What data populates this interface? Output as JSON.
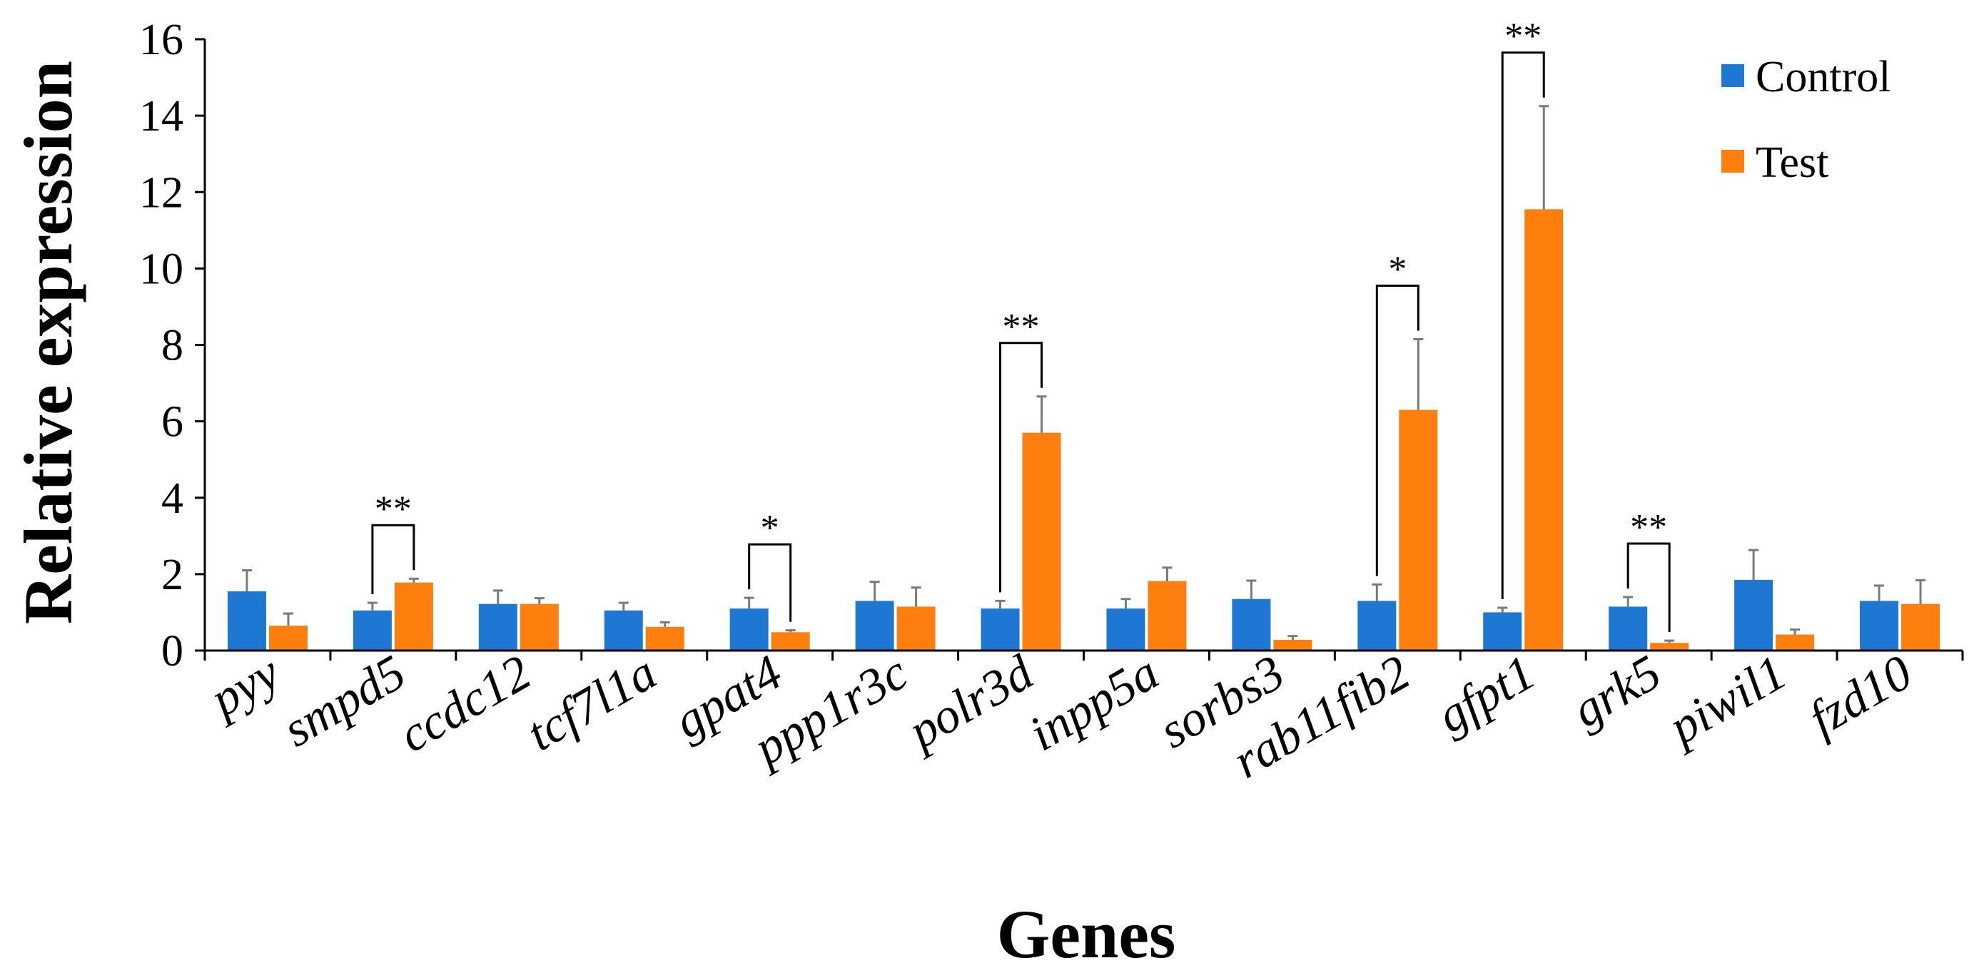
{
  "chart_data": {
    "type": "bar",
    "title": "",
    "xlabel": "Genes",
    "ylabel": "Relative expression",
    "ylim": [
      0,
      16
    ],
    "yticks": [
      "0",
      "2",
      "4",
      "6",
      "8",
      "10",
      "12",
      "14",
      "16"
    ],
    "grid": false,
    "legend_position": "top-right",
    "categories": [
      "pyy",
      "smpd5",
      "ccdc12",
      "tcf7l1a",
      "gpat4",
      "ppp1r3c",
      "polr3d",
      "inpp5a",
      "sorbs3",
      "rab11fib2",
      "gfpt1",
      "grk5",
      "piwil1",
      "fzd10"
    ],
    "series": [
      {
        "name": "Control",
        "color": "#1f77d4",
        "values": [
          1.55,
          1.05,
          1.22,
          1.05,
          1.1,
          1.3,
          1.1,
          1.1,
          1.35,
          1.3,
          1.0,
          1.15,
          1.85,
          1.3
        ],
        "errors": [
          0.55,
          0.2,
          0.35,
          0.2,
          0.28,
          0.5,
          0.2,
          0.25,
          0.48,
          0.43,
          0.12,
          0.25,
          0.78,
          0.4
        ]
      },
      {
        "name": "Test",
        "color": "#ff7f0e",
        "values": [
          0.65,
          1.78,
          1.22,
          0.62,
          0.48,
          1.15,
          5.7,
          1.82,
          0.28,
          6.3,
          11.55,
          0.2,
          0.42,
          1.22
        ],
        "errors": [
          0.32,
          0.1,
          0.15,
          0.12,
          0.05,
          0.5,
          0.95,
          0.35,
          0.1,
          1.85,
          2.7,
          0.06,
          0.13,
          0.62
        ]
      }
    ],
    "significance": [
      {
        "category": "smpd5",
        "label": "**"
      },
      {
        "category": "gpat4",
        "label": "*"
      },
      {
        "category": "polr3d",
        "label": "**"
      },
      {
        "category": "rab11fib2",
        "label": "*"
      },
      {
        "category": "gfpt1",
        "label": "**"
      },
      {
        "category": "grk5",
        "label": "**"
      }
    ]
  }
}
